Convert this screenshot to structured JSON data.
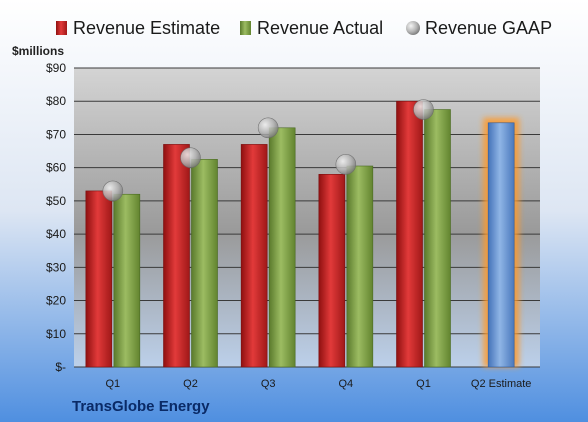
{
  "chart_data": {
    "type": "bar",
    "unit_label": "$millions",
    "company": "TransGlobe Energy",
    "categories": [
      "Q1",
      "Q2",
      "Q3",
      "Q4",
      "Q1",
      "Q2 Estimate"
    ],
    "series": [
      {
        "name": "Revenue Estimate",
        "kind": "bar",
        "color": "#cc2a2a",
        "values": [
          53,
          67,
          67,
          58,
          80,
          null
        ]
      },
      {
        "name": "Revenue Actual",
        "kind": "bar",
        "color": "#7fa04a",
        "values": [
          52,
          62.5,
          72,
          60.5,
          77.5,
          null
        ]
      },
      {
        "name": "Revenue GAAP",
        "kind": "marker",
        "color": "#b8b8b8",
        "values": [
          53,
          63,
          72,
          61,
          77.5,
          null
        ]
      },
      {
        "name": "Q2 Estimate",
        "kind": "bar",
        "color": "#6d9ad6",
        "values": [
          null,
          null,
          null,
          null,
          null,
          73.5
        ]
      }
    ],
    "y_ticks": [
      "$-",
      "$10",
      "$20",
      "$30",
      "$40",
      "$50",
      "$60",
      "$70",
      "$80",
      "$90"
    ],
    "ylim": [
      0,
      90
    ],
    "grid": true,
    "legend_position": "top"
  }
}
